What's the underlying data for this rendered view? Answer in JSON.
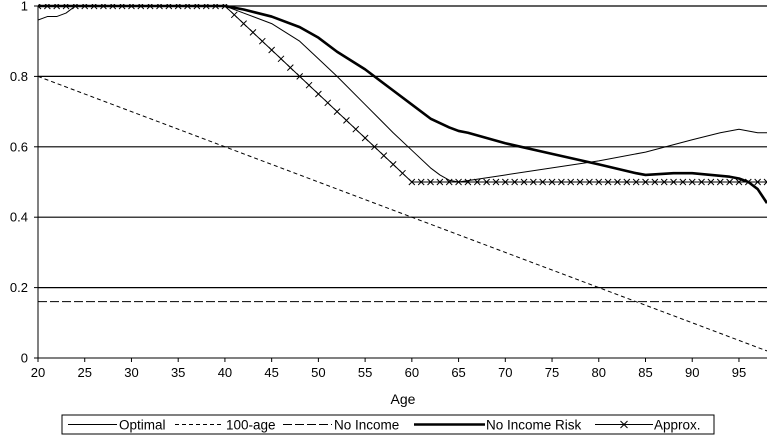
{
  "chart_data": {
    "type": "line",
    "title": "",
    "xlabel": "Age",
    "ylabel": "",
    "xlim": [
      20,
      98
    ],
    "ylim": [
      0,
      1
    ],
    "x_ticks": [
      20,
      25,
      30,
      35,
      40,
      45,
      50,
      55,
      60,
      65,
      70,
      75,
      80,
      85,
      90,
      95
    ],
    "x_tick_labels": [
      "20",
      "25",
      "30",
      "35",
      "40",
      "45",
      "50",
      "55",
      "60",
      "65",
      "70",
      "75",
      "80",
      "85",
      "90",
      "95"
    ],
    "y_ticks": [
      0,
      0.2,
      0.4,
      0.6,
      0.8,
      1
    ],
    "y_tick_labels": [
      "0",
      "0.2",
      "0.4",
      "0.6",
      "0.8",
      "1"
    ],
    "grid": "horizontal",
    "legend_position": "bottom",
    "series": [
      {
        "name": "Optimal",
        "style": "thin-solid",
        "color": "#000000",
        "x": [
          20,
          21,
          22,
          23,
          24,
          25,
          30,
          35,
          39,
          40,
          42,
          45,
          48,
          50,
          52,
          55,
          58,
          60,
          62,
          63,
          64,
          65,
          70,
          75,
          80,
          85,
          90,
          93,
          94,
          95,
          96,
          97,
          98
        ],
        "y": [
          0.96,
          0.97,
          0.97,
          0.98,
          1.0,
          1.0,
          1.0,
          1.0,
          1.0,
          1.0,
          0.98,
          0.95,
          0.9,
          0.85,
          0.8,
          0.72,
          0.64,
          0.59,
          0.54,
          0.52,
          0.505,
          0.5,
          0.52,
          0.54,
          0.56,
          0.585,
          0.62,
          0.64,
          0.645,
          0.65,
          0.645,
          0.64,
          0.64
        ]
      },
      {
        "name": "100-age",
        "style": "dashed",
        "color": "#000000",
        "x": [
          20,
          98
        ],
        "y": [
          0.8,
          0.02
        ]
      },
      {
        "name": "No Income",
        "style": "long-dashed",
        "color": "#000000",
        "x": [
          20,
          98
        ],
        "y": [
          0.16,
          0.16
        ]
      },
      {
        "name": "No Income Risk",
        "style": "thick-solid",
        "color": "#000000",
        "x": [
          20,
          25,
          30,
          35,
          40,
          42,
          45,
          48,
          50,
          52,
          55,
          58,
          60,
          62,
          64,
          65,
          66,
          70,
          75,
          80,
          84,
          85,
          88,
          90,
          92,
          94,
          95,
          96,
          97,
          98
        ],
        "y": [
          1.0,
          1.0,
          1.0,
          1.0,
          1.0,
          0.99,
          0.97,
          0.94,
          0.91,
          0.87,
          0.82,
          0.76,
          0.72,
          0.68,
          0.655,
          0.645,
          0.64,
          0.61,
          0.58,
          0.55,
          0.525,
          0.52,
          0.525,
          0.525,
          0.52,
          0.515,
          0.51,
          0.5,
          0.48,
          0.44
        ]
      },
      {
        "name": "Approx.",
        "style": "solid-x-markers",
        "color": "#000000",
        "x": [
          20,
          21,
          22,
          23,
          24,
          25,
          26,
          27,
          28,
          29,
          30,
          31,
          32,
          33,
          34,
          35,
          36,
          37,
          38,
          39,
          40,
          41,
          42,
          43,
          44,
          45,
          46,
          47,
          48,
          49,
          50,
          51,
          52,
          53,
          54,
          55,
          56,
          57,
          58,
          59,
          60,
          61,
          62,
          63,
          64,
          65,
          66,
          67,
          68,
          69,
          70,
          71,
          72,
          73,
          74,
          75,
          76,
          77,
          78,
          79,
          80,
          81,
          82,
          83,
          84,
          85,
          86,
          87,
          88,
          89,
          90,
          91,
          92,
          93,
          94,
          95,
          96,
          97,
          98
        ],
        "y": [
          1,
          1,
          1,
          1,
          1,
          1,
          1,
          1,
          1,
          1,
          1,
          1,
          1,
          1,
          1,
          1,
          1,
          1,
          1,
          1,
          1,
          0.975,
          0.95,
          0.925,
          0.9,
          0.875,
          0.85,
          0.825,
          0.8,
          0.775,
          0.75,
          0.725,
          0.7,
          0.675,
          0.65,
          0.625,
          0.6,
          0.575,
          0.55,
          0.525,
          0.5,
          0.5,
          0.5,
          0.5,
          0.5,
          0.5,
          0.5,
          0.5,
          0.5,
          0.5,
          0.5,
          0.5,
          0.5,
          0.5,
          0.5,
          0.5,
          0.5,
          0.5,
          0.5,
          0.5,
          0.5,
          0.5,
          0.5,
          0.5,
          0.5,
          0.5,
          0.5,
          0.5,
          0.5,
          0.5,
          0.5,
          0.5,
          0.5,
          0.5,
          0.5,
          0.5,
          0.5,
          0.5,
          0.5
        ]
      }
    ]
  }
}
